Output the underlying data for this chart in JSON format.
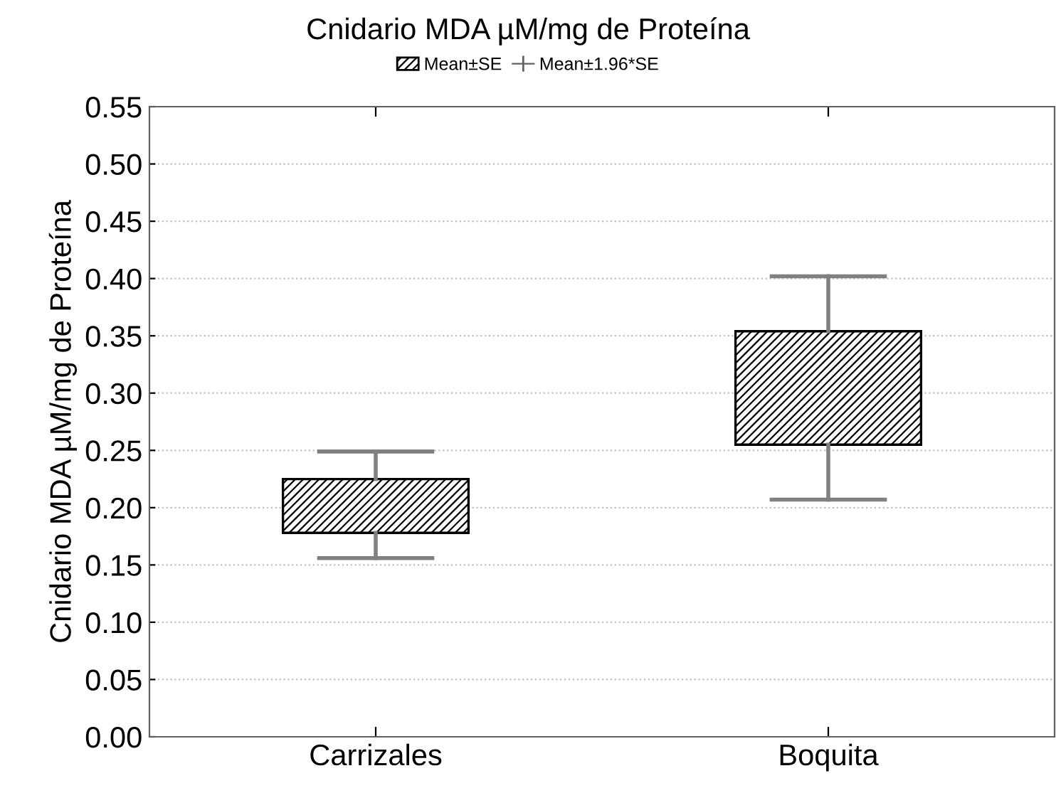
{
  "chart_data": {
    "type": "box",
    "title": "Cnidario MDA µM/mg de Proteína",
    "ylabel": "Cnidario MDA µM/mg de Proteína",
    "categories": [
      "Carrizales",
      "Boquita"
    ],
    "series": [
      {
        "name": "Mean±SE",
        "color": "#000000",
        "boxes": [
          {
            "low": 0.156,
            "q1": 0.178,
            "q3": 0.225,
            "high": 0.249
          },
          {
            "low": 0.207,
            "q1": 0.255,
            "q3": 0.354,
            "high": 0.402
          }
        ]
      }
    ],
    "annotations": [
      "Mean±1.96*SE"
    ],
    "ylim": [
      0,
      0.55
    ],
    "yticks": [
      {
        "value": 0,
        "label": "0.00"
      },
      {
        "value": 0.05,
        "label": "0.05"
      },
      {
        "value": 0.1,
        "label": "0.10"
      },
      {
        "value": 0.15,
        "label": "0.15"
      },
      {
        "value": 0.2,
        "label": "0.20"
      },
      {
        "value": 0.25,
        "label": "0.25"
      },
      {
        "value": 0.3,
        "label": "0.30"
      },
      {
        "value": 0.35,
        "label": "0.35"
      },
      {
        "value": 0.4,
        "label": "0.40"
      },
      {
        "value": 0.45,
        "label": "0.45"
      },
      {
        "value": 0.5,
        "label": "0.50"
      },
      {
        "value": 0.55,
        "label": "0.55"
      }
    ],
    "grid": "y",
    "legend": "top"
  }
}
